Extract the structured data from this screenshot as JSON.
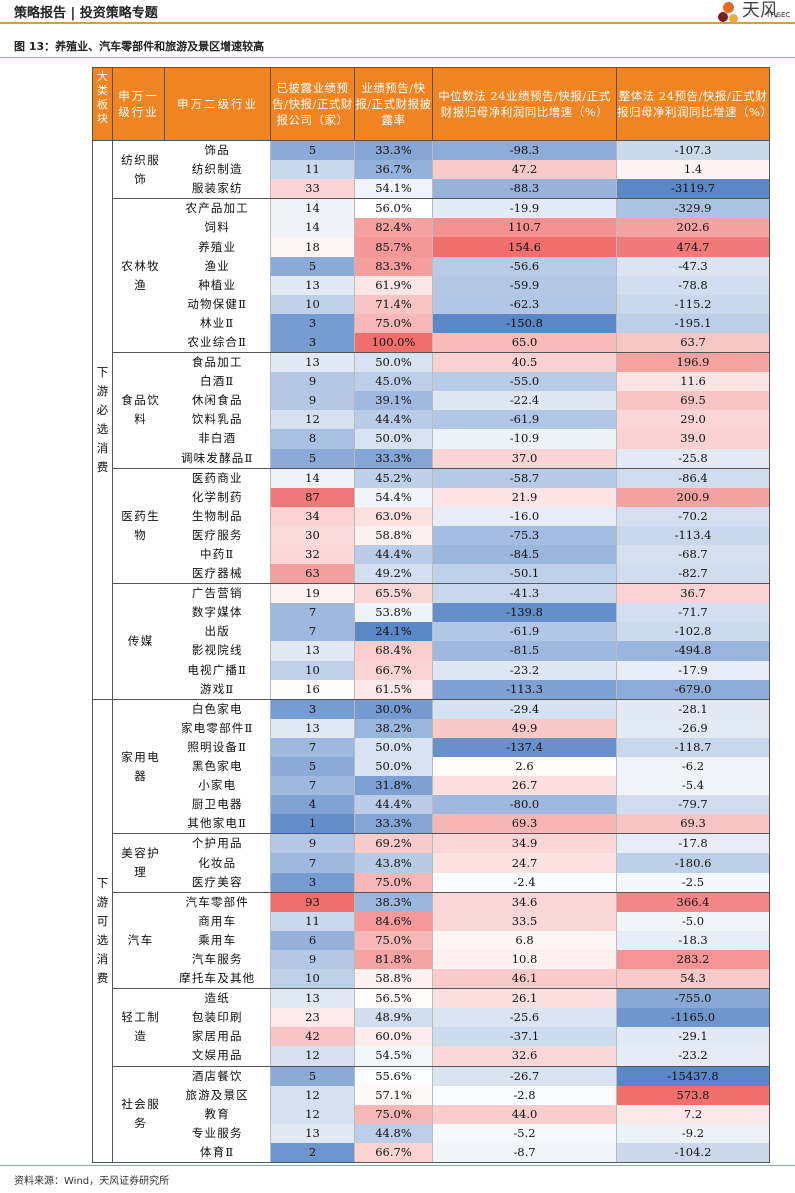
{
  "header": {
    "title": "策略报告 | 投资策略专题",
    "logo_text": "天风",
    "logo_sub": "TF SEC"
  },
  "figure_title": "图 13：养殖业、汽车零部件和旅游及景区增速较高",
  "source": "资料来源：Wind，天风证券研究所",
  "columns": [
    "大类板块",
    "申万一级行业",
    "申万二级行业",
    "已披露业绩预告/快报/正式财报公司（家）",
    "业绩预告/快报/正式财报披露率",
    "中位数法 24业绩预告/快报/正式财报归母净利润同比增速（%）",
    "整体法 24预告/快报/正式财报归母净利润同比增速（%）"
  ],
  "colors": {
    "header_bg": "#f08423",
    "blue": "#5b87c7",
    "red": "#f06e6e"
  },
  "blocks": [
    {
      "name": "下游必选消费",
      "groups": [
        {
          "name": "纺织服饰",
          "rows": [
            {
              "industry": "饰品",
              "count": "5",
              "rate": "33.3%",
              "median": "-98.3",
              "overall": "-107.3"
            },
            {
              "industry": "纺织制造",
              "count": "11",
              "rate": "36.7%",
              "median": "47.2",
              "overall": "1.4"
            },
            {
              "industry": "服装家纺",
              "count": "33",
              "rate": "54.1%",
              "median": "-88.3",
              "overall": "-3119.7"
            }
          ]
        },
        {
          "name": "农林牧渔",
          "rows": [
            {
              "industry": "农产品加工",
              "count": "14",
              "rate": "56.0%",
              "median": "-19.9",
              "overall": "-329.9"
            },
            {
              "industry": "饲料",
              "count": "14",
              "rate": "82.4%",
              "median": "110.7",
              "overall": "202.6"
            },
            {
              "industry": "养殖业",
              "count": "18",
              "rate": "85.7%",
              "median": "154.6",
              "overall": "474.7"
            },
            {
              "industry": "渔业",
              "count": "5",
              "rate": "83.3%",
              "median": "-56.6",
              "overall": "-47.3"
            },
            {
              "industry": "种植业",
              "count": "13",
              "rate": "61.9%",
              "median": "-59.9",
              "overall": "-78.8"
            },
            {
              "industry": "动物保健Ⅱ",
              "count": "10",
              "rate": "71.4%",
              "median": "-62.3",
              "overall": "-115.2"
            },
            {
              "industry": "林业Ⅱ",
              "count": "3",
              "rate": "75.0%",
              "median": "-150.8",
              "overall": "-195.1"
            },
            {
              "industry": "农业综合Ⅱ",
              "count": "3",
              "rate": "100.0%",
              "median": "65.0",
              "overall": "63.7"
            }
          ]
        },
        {
          "name": "食品饮料",
          "rows": [
            {
              "industry": "食品加工",
              "count": "13",
              "rate": "50.0%",
              "median": "40.5",
              "overall": "196.9"
            },
            {
              "industry": "白酒Ⅱ",
              "count": "9",
              "rate": "45.0%",
              "median": "-55.0",
              "overall": "11.6"
            },
            {
              "industry": "休闲食品",
              "count": "9",
              "rate": "39.1%",
              "median": "-22.4",
              "overall": "69.5"
            },
            {
              "industry": "饮料乳品",
              "count": "12",
              "rate": "44.4%",
              "median": "-61.9",
              "overall": "29.0"
            },
            {
              "industry": "非白酒",
              "count": "8",
              "rate": "50.0%",
              "median": "-10.9",
              "overall": "39.0"
            },
            {
              "industry": "调味发酵品Ⅱ",
              "count": "5",
              "rate": "33.3%",
              "median": "37.0",
              "overall": "-25.8"
            }
          ]
        },
        {
          "name": "医药生物",
          "rows": [
            {
              "industry": "医药商业",
              "count": "14",
              "rate": "45.2%",
              "median": "-58.7",
              "overall": "-86.4"
            },
            {
              "industry": "化学制药",
              "count": "87",
              "rate": "54.4%",
              "median": "21.9",
              "overall": "200.9"
            },
            {
              "industry": "生物制品",
              "count": "34",
              "rate": "63.0%",
              "median": "-16.0",
              "overall": "-70.2"
            },
            {
              "industry": "医疗服务",
              "count": "30",
              "rate": "58.8%",
              "median": "-75.3",
              "overall": "-113.4"
            },
            {
              "industry": "中药Ⅱ",
              "count": "32",
              "rate": "44.4%",
              "median": "-84.5",
              "overall": "-68.7"
            },
            {
              "industry": "医疗器械",
              "count": "63",
              "rate": "49.2%",
              "median": "-50.1",
              "overall": "-82.7"
            }
          ]
        },
        {
          "name": "传媒",
          "rows": [
            {
              "industry": "广告营销",
              "count": "19",
              "rate": "65.5%",
              "median": "-41.3",
              "overall": "36.7"
            },
            {
              "industry": "数字媒体",
              "count": "7",
              "rate": "53.8%",
              "median": "-139.8",
              "overall": "-71.7"
            },
            {
              "industry": "出版",
              "count": "7",
              "rate": "24.1%",
              "median": "-61.9",
              "overall": "-102.8"
            },
            {
              "industry": "影视院线",
              "count": "13",
              "rate": "68.4%",
              "median": "-81.5",
              "overall": "-494.8"
            },
            {
              "industry": "电视广播Ⅱ",
              "count": "10",
              "rate": "66.7%",
              "median": "-23.2",
              "overall": "-17.9"
            },
            {
              "industry": "游戏Ⅱ",
              "count": "16",
              "rate": "61.5%",
              "median": "-113.3",
              "overall": "-679.0"
            }
          ]
        }
      ]
    },
    {
      "name": "下游可选消费",
      "groups": [
        {
          "name": "家用电器",
          "rows": [
            {
              "industry": "白色家电",
              "count": "3",
              "rate": "30.0%",
              "median": "-29.4",
              "overall": "-28.1"
            },
            {
              "industry": "家电零部件Ⅱ",
              "count": "13",
              "rate": "38.2%",
              "median": "49.9",
              "overall": "-26.9"
            },
            {
              "industry": "照明设备Ⅱ",
              "count": "7",
              "rate": "50.0%",
              "median": "-137.4",
              "overall": "-118.7"
            },
            {
              "industry": "黑色家电",
              "count": "5",
              "rate": "50.0%",
              "median": "2.6",
              "overall": "-6.2"
            },
            {
              "industry": "小家电",
              "count": "7",
              "rate": "31.8%",
              "median": "26.7",
              "overall": "-5.4"
            },
            {
              "industry": "厨卫电器",
              "count": "4",
              "rate": "44.4%",
              "median": "-80.0",
              "overall": "-79.7"
            },
            {
              "industry": "其他家电Ⅱ",
              "count": "1",
              "rate": "33.3%",
              "median": "69.3",
              "overall": "69.3"
            }
          ]
        },
        {
          "name": "美容护理",
          "rows": [
            {
              "industry": "个护用品",
              "count": "9",
              "rate": "69.2%",
              "median": "34.9",
              "overall": "-17.8"
            },
            {
              "industry": "化妆品",
              "count": "7",
              "rate": "43.8%",
              "median": "24.7",
              "overall": "-180.6"
            },
            {
              "industry": "医疗美容",
              "count": "3",
              "rate": "75.0%",
              "median": "-2.4",
              "overall": "-2.5"
            }
          ]
        },
        {
          "name": "汽车",
          "rows": [
            {
              "industry": "汽车零部件",
              "count": "93",
              "rate": "38.3%",
              "median": "34.6",
              "overall": "366.4"
            },
            {
              "industry": "商用车",
              "count": "11",
              "rate": "84.6%",
              "median": "33.5",
              "overall": "-5.0"
            },
            {
              "industry": "乘用车",
              "count": "6",
              "rate": "75.0%",
              "median": "6.8",
              "overall": "-18.3"
            },
            {
              "industry": "汽车服务",
              "count": "9",
              "rate": "81.8%",
              "median": "10.8",
              "overall": "283.2"
            },
            {
              "industry": "摩托车及其他",
              "count": "10",
              "rate": "58.8%",
              "median": "46.1",
              "overall": "54.3"
            }
          ]
        },
        {
          "name": "轻工制造",
          "rows": [
            {
              "industry": "造纸",
              "count": "13",
              "rate": "56.5%",
              "median": "26.1",
              "overall": "-755.0"
            },
            {
              "industry": "包装印刷",
              "count": "23",
              "rate": "48.9%",
              "median": "-25.6",
              "overall": "-1165.0"
            },
            {
              "industry": "家居用品",
              "count": "42",
              "rate": "60.0%",
              "median": "-37.1",
              "overall": "-29.1"
            },
            {
              "industry": "文娱用品",
              "count": "12",
              "rate": "54.5%",
              "median": "32.6",
              "overall": "-23.2"
            }
          ]
        },
        {
          "name": "社会服务",
          "rows": [
            {
              "industry": "酒店餐饮",
              "count": "5",
              "rate": "55.6%",
              "median": "-26.7",
              "overall": "-15437.8"
            },
            {
              "industry": "旅游及景区",
              "count": "12",
              "rate": "57.1%",
              "median": "-2.8",
              "overall": "573.8"
            },
            {
              "industry": "教育",
              "count": "12",
              "rate": "75.0%",
              "median": "44.0",
              "overall": "7.2"
            },
            {
              "industry": "专业服务",
              "count": "13",
              "rate": "44.8%",
              "median": "-5.2",
              "overall": "-9.2"
            },
            {
              "industry": "体育Ⅱ",
              "count": "2",
              "rate": "66.7%",
              "median": "-8.7",
              "overall": "-104.2"
            }
          ]
        }
      ]
    }
  ]
}
